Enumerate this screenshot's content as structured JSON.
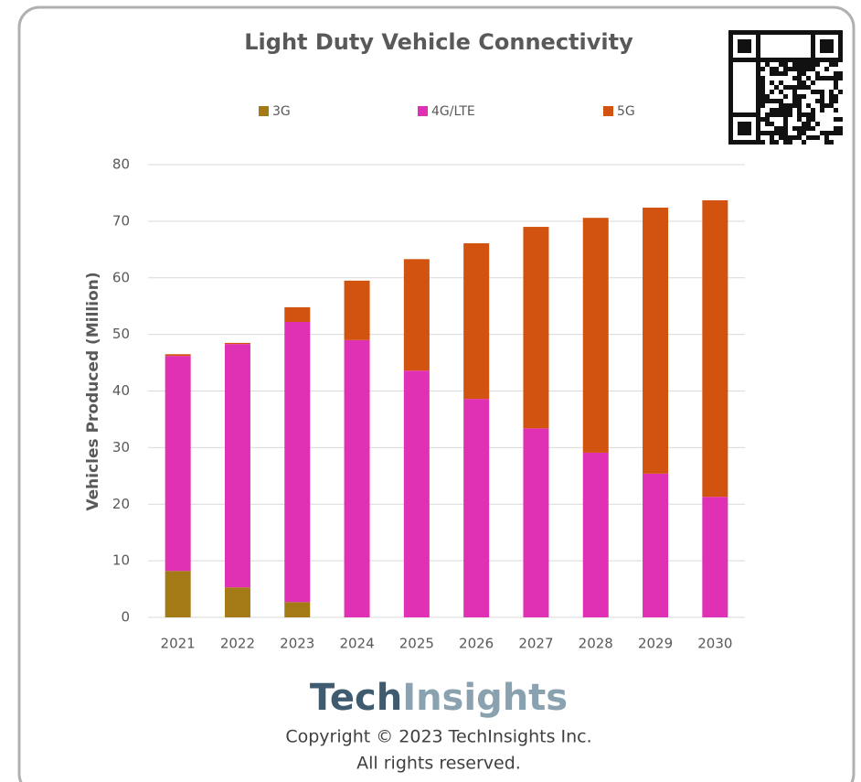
{
  "chart_data": {
    "type": "stacked_bar",
    "title": "Light Duty Vehicle Connectivity",
    "y_label": "Vehicles Produced (Million)",
    "categories": [
      "2021",
      "2022",
      "2023",
      "2024",
      "2025",
      "2026",
      "2027",
      "2028",
      "2029",
      "2030"
    ],
    "series": [
      {
        "name": "3G",
        "color": "#a37a16",
        "values": [
          8.2,
          5.3,
          2.7,
          0,
          0,
          0,
          0,
          0,
          0,
          0
        ]
      },
      {
        "name": "4G/LTE",
        "color": "#e031b5",
        "values": [
          38.0,
          43.0,
          49.5,
          49.0,
          43.6,
          38.6,
          33.4,
          29.1,
          25.4,
          21.3
        ]
      },
      {
        "name": "5G",
        "color": "#d2530f",
        "values": [
          0.3,
          0.2,
          2.6,
          10.5,
          19.7,
          27.5,
          35.6,
          41.5,
          47.0,
          52.4
        ]
      }
    ],
    "ylim": [
      0,
      80
    ],
    "yticks": [
      0,
      10,
      20,
      30,
      40,
      50,
      60,
      70,
      80
    ],
    "grid": true,
    "legend": "top"
  },
  "footer": {
    "logo_bold": "Tech",
    "logo_light": "Insights",
    "copyright": "Copyright © 2023 TechInsights Inc.",
    "rights": "All rights reserved."
  }
}
